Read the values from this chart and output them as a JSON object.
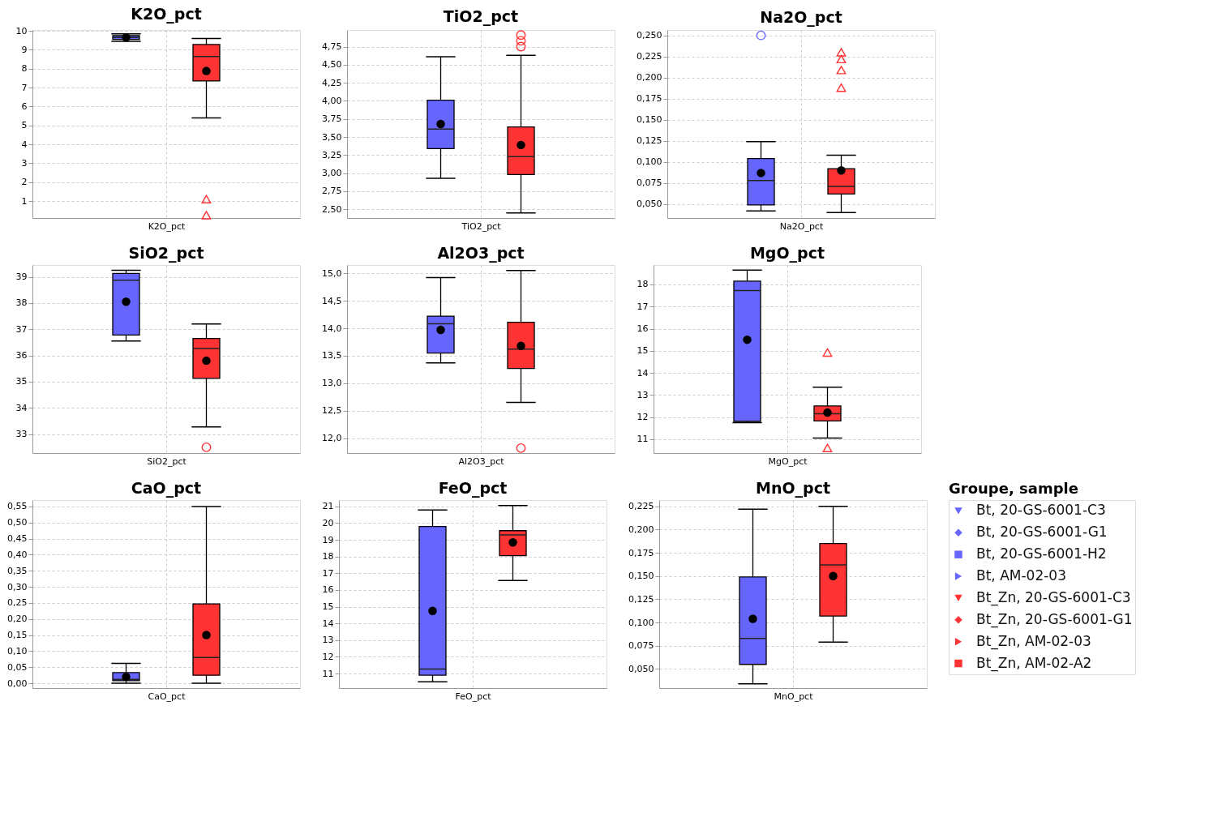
{
  "chart_data": [
    {
      "type": "box",
      "title": "K2O_pct",
      "xlabel": "K2O_pct",
      "categories": [
        null
      ],
      "ylim": [
        0.1,
        10.05
      ],
      "yticks": [
        1,
        2,
        3,
        4,
        5,
        6,
        7,
        8,
        9,
        10
      ],
      "grid": true,
      "series": [
        {
          "color": "#6666ff",
          "boxes": [
            {
              "low": 9.45,
              "q1": 9.55,
              "median": 9.65,
              "q3": 9.75,
              "high": 9.85,
              "mean": 9.65
            }
          ]
        },
        {
          "color": "#ff3333",
          "marker": "triangle",
          "boxes": [
            {
              "low": 5.4,
              "q1": 7.35,
              "median": 8.65,
              "q3": 9.28,
              "high": 9.6,
              "mean": 7.88,
              "outliers": [
                1.1,
                0.25
              ]
            }
          ]
        }
      ]
    },
    {
      "type": "box",
      "title": "TiO2_pct",
      "xlabel": "TiO2_pct",
      "categories": [
        null
      ],
      "ylim": [
        2.38,
        4.98
      ],
      "grid": true,
      "yticks": [
        {
          "value": 2.5,
          "label": "2,50"
        },
        {
          "value": 2.75,
          "label": "2,75"
        },
        {
          "value": 3.0,
          "label": "3,00"
        },
        {
          "value": 3.25,
          "label": "3,25"
        },
        {
          "value": 3.5,
          "label": "3,50"
        },
        {
          "value": 3.75,
          "label": "3,75"
        },
        {
          "value": 4.0,
          "label": "4,00"
        },
        {
          "value": 4.25,
          "label": "4,25"
        },
        {
          "value": 4.5,
          "label": "4,50"
        },
        {
          "value": 4.75,
          "label": "4,75"
        }
      ],
      "series": [
        {
          "color": "#6666ff",
          "boxes": [
            {
              "low": 2.93,
              "q1": 3.34,
              "median": 3.61,
              "q3": 4.01,
              "high": 4.61,
              "mean": 3.68
            }
          ]
        },
        {
          "color": "#ff3333",
          "marker": "circle",
          "boxes": [
            {
              "low": 2.45,
              "q1": 2.98,
              "median": 3.23,
              "q3": 3.64,
              "high": 4.63,
              "mean": 3.39,
              "outliers": [
                4.91,
                4.83,
                4.75
              ]
            }
          ]
        }
      ]
    },
    {
      "type": "box",
      "title": "Na2O_pct",
      "xlabel": "Na2O_pct",
      "categories": [
        null
      ],
      "ylim": [
        0.0336,
        0.2564
      ],
      "grid": true,
      "yticks": [
        {
          "value": 0.05,
          "label": "0,050"
        },
        {
          "value": 0.075,
          "label": "0,075"
        },
        {
          "value": 0.1,
          "label": "0,100"
        },
        {
          "value": 0.125,
          "label": "0,125"
        },
        {
          "value": 0.15,
          "label": "0,150"
        },
        {
          "value": 0.175,
          "label": "0,175"
        },
        {
          "value": 0.2,
          "label": "0,200"
        },
        {
          "value": 0.225,
          "label": "0,225"
        },
        {
          "value": 0.25,
          "label": "0,250"
        }
      ],
      "series": [
        {
          "color": "#6666ff",
          "marker": "circle",
          "boxes": [
            {
              "low": 0.042,
              "q1": 0.049,
              "median": 0.078,
              "q3": 0.104,
              "high": 0.124,
              "mean": 0.087,
              "outliers": [
                0.25
              ]
            }
          ]
        },
        {
          "color": "#ff3333",
          "marker": "triangle",
          "boxes": [
            {
              "low": 0.04,
              "q1": 0.062,
              "median": 0.071,
              "q3": 0.092,
              "high": 0.108,
              "mean": 0.09,
              "outliers": [
                0.23,
                0.222,
                0.209,
                0.188
              ]
            }
          ]
        }
      ]
    },
    {
      "type": "box",
      "title": "SiO2_pct",
      "xlabel": "SiO2_pct",
      "categories": [
        null
      ],
      "ylim": [
        32.28,
        39.45
      ],
      "yticks": [
        33,
        34,
        35,
        36,
        37,
        38,
        39
      ],
      "grid": true,
      "series": [
        {
          "color": "#6666ff",
          "boxes": [
            {
              "low": 36.55,
              "q1": 36.78,
              "median": 38.87,
              "q3": 39.13,
              "high": 39.25,
              "mean": 38.05
            }
          ]
        },
        {
          "color": "#ff3333",
          "marker": "circle",
          "boxes": [
            {
              "low": 33.28,
              "q1": 35.13,
              "median": 36.27,
              "q3": 36.65,
              "high": 37.2,
              "mean": 35.8,
              "outliers": [
                32.5
              ]
            }
          ]
        }
      ]
    },
    {
      "type": "box",
      "title": "Al2O3_pct",
      "xlabel": "Al2O3_pct",
      "categories": [
        null
      ],
      "ylim": [
        11.73,
        15.15
      ],
      "grid": true,
      "yticks": [
        {
          "value": 12.0,
          "label": "12,0"
        },
        {
          "value": 12.5,
          "label": "12,5"
        },
        {
          "value": 13.0,
          "label": "13,0"
        },
        {
          "value": 13.5,
          "label": "13,5"
        },
        {
          "value": 14.0,
          "label": "14,0"
        },
        {
          "value": 14.5,
          "label": "14,5"
        },
        {
          "value": 15.0,
          "label": "15,0"
        }
      ],
      "series": [
        {
          "color": "#6666ff",
          "boxes": [
            {
              "low": 13.37,
              "q1": 13.55,
              "median": 14.08,
              "q3": 14.22,
              "high": 14.92,
              "mean": 13.97
            }
          ]
        },
        {
          "color": "#ff3333",
          "marker": "circle",
          "boxes": [
            {
              "low": 12.65,
              "q1": 13.27,
              "median": 13.62,
              "q3": 14.11,
              "high": 15.05,
              "mean": 13.68,
              "outliers": [
                11.82
              ]
            }
          ]
        }
      ]
    },
    {
      "type": "box",
      "title": "MgO_pct",
      "xlabel": "MgO_pct",
      "categories": [
        null
      ],
      "ylim": [
        10.37,
        18.88
      ],
      "yticks": [
        11,
        12,
        13,
        14,
        15,
        16,
        17,
        18
      ],
      "grid": true,
      "series": [
        {
          "color": "#6666ff",
          "boxes": [
            {
              "low": 11.75,
              "q1": 11.8,
              "median": 17.72,
              "q3": 18.15,
              "high": 18.65,
              "mean": 15.5
            }
          ]
        },
        {
          "color": "#ff3333",
          "marker": "triangle",
          "boxes": [
            {
              "low": 11.05,
              "q1": 11.82,
              "median": 12.15,
              "q3": 12.5,
              "high": 13.35,
              "mean": 12.2,
              "outliers": [
                14.92,
                10.6
              ]
            }
          ]
        }
      ]
    },
    {
      "type": "box",
      "title": "CaO_pct",
      "xlabel": "CaO_pct",
      "categories": [
        null
      ],
      "ylim": [
        -0.015,
        0.57
      ],
      "grid": true,
      "yticks": [
        {
          "value": 0.0,
          "label": "0,00"
        },
        {
          "value": 0.05,
          "label": "0,05"
        },
        {
          "value": 0.1,
          "label": "0,10"
        },
        {
          "value": 0.15,
          "label": "0,15"
        },
        {
          "value": 0.2,
          "label": "0,20"
        },
        {
          "value": 0.25,
          "label": "0,25"
        },
        {
          "value": 0.3,
          "label": "0,30"
        },
        {
          "value": 0.35,
          "label": "0,35"
        },
        {
          "value": 0.4,
          "label": "0,40"
        },
        {
          "value": 0.45,
          "label": "0,45"
        },
        {
          "value": 0.5,
          "label": "0,50"
        },
        {
          "value": 0.55,
          "label": "0,55"
        }
      ],
      "series": [
        {
          "color": "#6666ff",
          "boxes": [
            {
              "low": 0.0,
              "q1": 0.008,
              "median": 0.012,
              "q3": 0.033,
              "high": 0.062,
              "mean": 0.02
            }
          ]
        },
        {
          "color": "#ff3333",
          "boxes": [
            {
              "low": 0.0,
              "q1": 0.025,
              "median": 0.08,
              "q3": 0.247,
              "high": 0.55,
              "mean": 0.15
            }
          ]
        }
      ]
    },
    {
      "type": "box",
      "title": "FeO_pct",
      "xlabel": "FeO_pct",
      "categories": [
        null
      ],
      "ylim": [
        10.13,
        21.38
      ],
      "yticks": [
        11,
        12,
        13,
        14,
        15,
        16,
        17,
        18,
        19,
        20,
        21
      ],
      "grid": true,
      "series": [
        {
          "color": "#6666ff",
          "boxes": [
            {
              "low": 10.5,
              "q1": 10.9,
              "median": 11.27,
              "q3": 19.8,
              "high": 20.78,
              "mean": 14.75
            }
          ]
        },
        {
          "color": "#ff3333",
          "boxes": [
            {
              "low": 16.57,
              "q1": 18.05,
              "median": 19.3,
              "q3": 19.55,
              "high": 21.05,
              "mean": 18.85
            }
          ]
        }
      ]
    },
    {
      "type": "box",
      "title": "MnO_pct",
      "xlabel": "MnO_pct",
      "categories": [
        null
      ],
      "ylim": [
        0.0295,
        0.2318
      ],
      "grid": true,
      "yticks": [
        {
          "value": 0.05,
          "label": "0,050"
        },
        {
          "value": 0.075,
          "label": "0,075"
        },
        {
          "value": 0.1,
          "label": "0,100"
        },
        {
          "value": 0.125,
          "label": "0,125"
        },
        {
          "value": 0.15,
          "label": "0,150"
        },
        {
          "value": 0.175,
          "label": "0,175"
        },
        {
          "value": 0.2,
          "label": "0,200"
        },
        {
          "value": 0.225,
          "label": "0,225"
        }
      ],
      "series": [
        {
          "color": "#6666ff",
          "boxes": [
            {
              "low": 0.034,
              "q1": 0.055,
              "median": 0.083,
              "q3": 0.149,
              "high": 0.222,
              "mean": 0.104
            }
          ]
        },
        {
          "color": "#ff3333",
          "boxes": [
            {
              "low": 0.079,
              "q1": 0.107,
              "median": 0.162,
              "q3": 0.185,
              "high": 0.225,
              "mean": 0.15
            }
          ]
        }
      ]
    },
    {
      "type": "other",
      "legend_title": "Groupe, sample",
      "series": [
        {
          "name": "Bt, 20-GS-6001-C3",
          "color": "#6666ff",
          "marker": "triangle-down"
        },
        {
          "name": "Bt, 20-GS-6001-G1",
          "color": "#6666ff",
          "marker": "diamond"
        },
        {
          "name": "Bt, 20-GS-6001-H2",
          "color": "#6666ff",
          "marker": "square"
        },
        {
          "name": "Bt, AM-02-03",
          "color": "#6666ff",
          "marker": "triangle-right"
        },
        {
          "name": "Bt_Zn, 20-GS-6001-C3",
          "color": "#ff3333",
          "marker": "triangle-down"
        },
        {
          "name": "Bt_Zn, 20-GS-6001-G1",
          "color": "#ff3333",
          "marker": "diamond"
        },
        {
          "name": "Bt_Zn, AM-02-03",
          "color": "#ff3333",
          "marker": "triangle-right"
        },
        {
          "name": "Bt_Zn, AM-02-A2",
          "color": "#ff3333",
          "marker": "square"
        }
      ]
    }
  ]
}
